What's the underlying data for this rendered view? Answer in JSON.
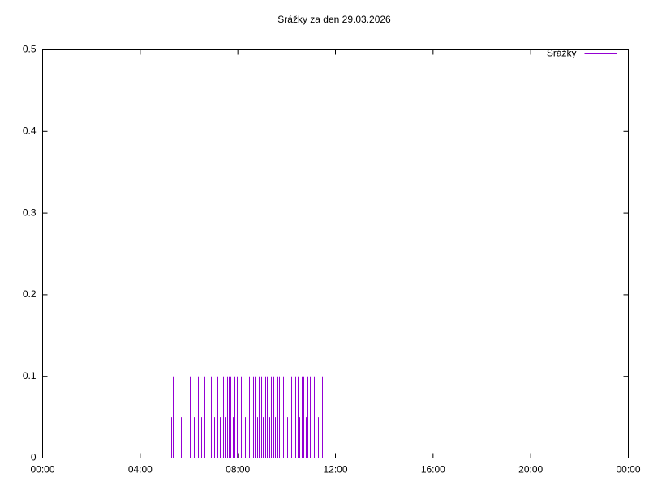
{
  "chart_data": {
    "type": "impulses",
    "title": "Srážky za den 29.03.2026",
    "legend": "top-right",
    "series": [
      {
        "name": "Srážky",
        "color": "#9400d3",
        "x": [
          317,
          321,
          341,
          345,
          355,
          361,
          371,
          375,
          381,
          389,
          397,
          405,
          413,
          421,
          429,
          435,
          443,
          447,
          453,
          457,
          462,
          467,
          472,
          477,
          482,
          487,
          492,
          497,
          502,
          507,
          512,
          517,
          522,
          527,
          532,
          537,
          542,
          547,
          552,
          557,
          562,
          567,
          572,
          577,
          582,
          587,
          592,
          597,
          602,
          607,
          612,
          617,
          622,
          627,
          632,
          637,
          642,
          647,
          652,
          657,
          662,
          667,
          672,
          677,
          682,
          687
        ],
        "values": [
          0.05,
          0.1,
          0.05,
          0.1,
          0.05,
          0.1,
          0.05,
          0.1,
          0.1,
          0.05,
          0.1,
          0.05,
          0.1,
          0.05,
          0.1,
          0.05,
          0.1,
          0.05,
          0.1,
          0.1,
          0.1,
          0.05,
          0.1,
          0.1,
          0.05,
          0.1,
          0.1,
          0.05,
          0.1,
          0.1,
          0.05,
          0.1,
          0.1,
          0.05,
          0.1,
          0.1,
          0.05,
          0.1,
          0.1,
          0.05,
          0.1,
          0.1,
          0.05,
          0.1,
          0.1,
          0.05,
          0.1,
          0.1,
          0.05,
          0.1,
          0.1,
          0.05,
          0.1,
          0.1,
          0.05,
          0.1,
          0.1,
          0.05,
          0.1,
          0.1,
          0.05,
          0.1,
          0.1,
          0.05,
          0.1,
          0.1
        ]
      }
    ],
    "xlim": [
      0,
      1440
    ],
    "xticks": [
      {
        "value": 0,
        "label": "00:00"
      },
      {
        "value": 240,
        "label": "04:00"
      },
      {
        "value": 480,
        "label": "08:00"
      },
      {
        "value": 720,
        "label": "12:00"
      },
      {
        "value": 960,
        "label": "16:00"
      },
      {
        "value": 1200,
        "label": "20:00"
      },
      {
        "value": 1440,
        "label": "00:00"
      }
    ],
    "ylim": [
      0,
      0.5
    ],
    "yticks": [
      0,
      0.1,
      0.2,
      0.3,
      0.4,
      0.5
    ]
  }
}
